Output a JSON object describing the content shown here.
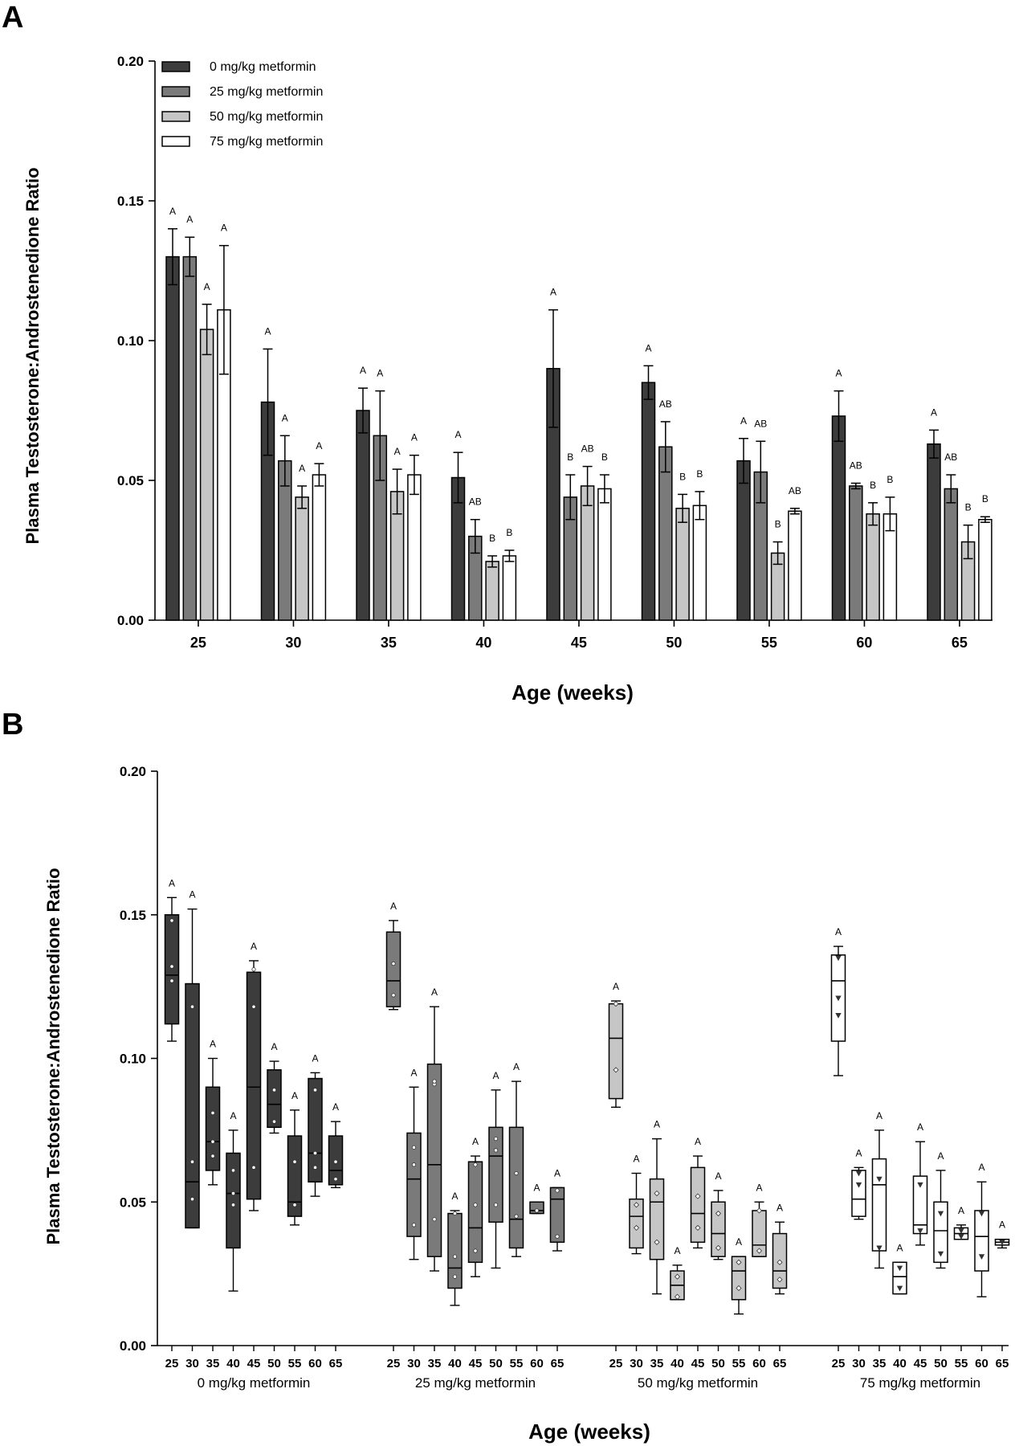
{
  "figure": {
    "panel_labels": [
      "A",
      "B"
    ],
    "colors": {
      "0 mg/kg metformin": "#3c3c3c",
      "25 mg/kg metformin": "#7a7a7a",
      "50 mg/kg metformin": "#c6c6c6",
      "75 mg/kg metformin": "#ffffff"
    }
  },
  "chart_data": [
    {
      "panel": "A",
      "type": "bar",
      "title": "",
      "xlabel": "Age (weeks)",
      "ylabel": "Plasma Testosterone:Androstenedione Ratio",
      "ylim": [
        0,
        0.2
      ],
      "yticks": [
        "0.00",
        "0.05",
        "0.10",
        "0.15",
        "0.20"
      ],
      "yticks_values": [
        0,
        0.05,
        0.1,
        0.15,
        0.2
      ],
      "legend_position": "top-left",
      "categories": [
        "25",
        "30",
        "35",
        "40",
        "45",
        "50",
        "55",
        "60",
        "65"
      ],
      "series": [
        {
          "name": "0 mg/kg metformin",
          "values": [
            0.13,
            0.078,
            0.075,
            0.051,
            0.09,
            0.085,
            0.057,
            0.073,
            0.063
          ],
          "errors": [
            0.01,
            0.019,
            0.008,
            0.009,
            0.021,
            0.006,
            0.008,
            0.009,
            0.005
          ],
          "letters": [
            "A",
            "A",
            "A",
            "A",
            "A",
            "A",
            "A",
            "A",
            "A"
          ]
        },
        {
          "name": "25 mg/kg metformin",
          "values": [
            0.13,
            0.057,
            0.066,
            0.03,
            0.044,
            0.062,
            0.053,
            0.048,
            0.047
          ],
          "errors": [
            0.007,
            0.009,
            0.016,
            0.006,
            0.008,
            0.009,
            0.011,
            0.001,
            0.005
          ],
          "letters": [
            "A",
            "A",
            "A",
            "AB",
            "B",
            "AB",
            "AB",
            "AB",
            "AB"
          ]
        },
        {
          "name": "50 mg/kg metformin",
          "values": [
            0.104,
            0.044,
            0.046,
            0.021,
            0.048,
            0.04,
            0.024,
            0.038,
            0.028
          ],
          "errors": [
            0.009,
            0.004,
            0.008,
            0.002,
            0.007,
            0.005,
            0.004,
            0.004,
            0.006
          ],
          "letters": [
            "A",
            "A",
            "A",
            "B",
            "AB",
            "B",
            "B",
            "B",
            "B"
          ]
        },
        {
          "name": "75 mg/kg metformin",
          "values": [
            0.111,
            0.052,
            0.052,
            0.023,
            0.047,
            0.041,
            0.039,
            0.038,
            0.036
          ],
          "errors": [
            0.023,
            0.004,
            0.007,
            0.002,
            0.005,
            0.005,
            0.001,
            0.006,
            0.001
          ],
          "letters": [
            "A",
            "A",
            "A",
            "B",
            "B",
            "B",
            "AB",
            "B",
            "B"
          ]
        }
      ]
    },
    {
      "panel": "B",
      "type": "box",
      "title": "",
      "xlabel": "Age (weeks)",
      "ylabel": "Plasma Testosterone:Androstenedione Ratio",
      "ylim": [
        0,
        0.2
      ],
      "yticks": [
        "0.00",
        "0.05",
        "0.10",
        "0.15",
        "0.20"
      ],
      "yticks_values": [
        0,
        0.05,
        0.1,
        0.15,
        0.2
      ],
      "ages": [
        "25",
        "30",
        "35",
        "40",
        "45",
        "50",
        "55",
        "60",
        "65"
      ],
      "groups": [
        {
          "name": "0 mg/kg metformin",
          "marker": "circle",
          "boxes": [
            {
              "min": 0.106,
              "q1": 0.112,
              "median": 0.129,
              "q3": 0.15,
              "max": 0.156,
              "points": [
                0.127,
                0.132,
                0.148
              ],
              "letter": "A"
            },
            {
              "min": 0.041,
              "q1": 0.041,
              "median": 0.057,
              "q3": 0.126,
              "max": 0.152,
              "points": [
                0.051,
                0.064,
                0.118
              ],
              "letter": "A"
            },
            {
              "min": 0.056,
              "q1": 0.061,
              "median": 0.071,
              "q3": 0.09,
              "max": 0.1,
              "points": [
                0.066,
                0.071,
                0.081
              ],
              "letter": "A"
            },
            {
              "min": 0.019,
              "q1": 0.034,
              "median": 0.053,
              "q3": 0.067,
              "max": 0.075,
              "points": [
                0.049,
                0.053,
                0.061
              ],
              "letter": "A"
            },
            {
              "min": 0.047,
              "q1": 0.051,
              "median": 0.09,
              "q3": 0.13,
              "max": 0.134,
              "points": [
                0.062,
                0.118,
                0.131
              ],
              "letter": "A"
            },
            {
              "min": 0.074,
              "q1": 0.076,
              "median": 0.084,
              "q3": 0.096,
              "max": 0.099,
              "points": [
                0.078,
                0.089
              ],
              "letter": "A"
            },
            {
              "min": 0.042,
              "q1": 0.045,
              "median": 0.05,
              "q3": 0.073,
              "max": 0.082,
              "points": [
                0.049,
                0.064
              ],
              "letter": "A"
            },
            {
              "min": 0.052,
              "q1": 0.057,
              "median": 0.067,
              "q3": 0.093,
              "max": 0.095,
              "points": [
                0.062,
                0.067,
                0.089
              ],
              "letter": "A"
            },
            {
              "min": 0.055,
              "q1": 0.056,
              "median": 0.061,
              "q3": 0.073,
              "max": 0.078,
              "points": [
                0.058,
                0.064
              ],
              "letter": "A"
            }
          ]
        },
        {
          "name": "25 mg/kg metformin",
          "marker": "circle",
          "boxes": [
            {
              "min": 0.117,
              "q1": 0.118,
              "median": 0.127,
              "q3": 0.144,
              "max": 0.148,
              "points": [
                0.122,
                0.133
              ],
              "letter": "A"
            },
            {
              "min": 0.03,
              "q1": 0.038,
              "median": 0.058,
              "q3": 0.074,
              "max": 0.09,
              "points": [
                0.042,
                0.063,
                0.069
              ],
              "letter": "A"
            },
            {
              "min": 0.026,
              "q1": 0.031,
              "median": 0.063,
              "q3": 0.098,
              "max": 0.118,
              "points": [
                0.044,
                0.091,
                0.092
              ],
              "letter": "A"
            },
            {
              "min": 0.014,
              "q1": 0.02,
              "median": 0.027,
              "q3": 0.046,
              "max": 0.047,
              "points": [
                0.024,
                0.031,
                0.046
              ],
              "letter": "A"
            },
            {
              "min": 0.024,
              "q1": 0.029,
              "median": 0.041,
              "q3": 0.064,
              "max": 0.066,
              "points": [
                0.033,
                0.049,
                0.063
              ],
              "letter": "A"
            },
            {
              "min": 0.027,
              "q1": 0.043,
              "median": 0.066,
              "q3": 0.076,
              "max": 0.089,
              "points": [
                0.049,
                0.068,
                0.072
              ],
              "letter": "A"
            },
            {
              "min": 0.031,
              "q1": 0.034,
              "median": 0.044,
              "q3": 0.076,
              "max": 0.092,
              "points": [
                0.045,
                0.06
              ],
              "letter": "A"
            },
            {
              "min": 0.046,
              "q1": 0.046,
              "median": 0.047,
              "q3": 0.05,
              "max": 0.05,
              "points": [
                0.047
              ],
              "letter": "A"
            },
            {
              "min": 0.033,
              "q1": 0.036,
              "median": 0.051,
              "q3": 0.055,
              "max": 0.055,
              "points": [
                0.038,
                0.054
              ],
              "letter": "A"
            }
          ]
        },
        {
          "name": "50 mg/kg metformin",
          "marker": "diamond",
          "boxes": [
            {
              "min": 0.083,
              "q1": 0.086,
              "median": 0.107,
              "q3": 0.119,
              "max": 0.12,
              "points": [
                0.096,
                0.119
              ],
              "letter": "A"
            },
            {
              "min": 0.032,
              "q1": 0.034,
              "median": 0.045,
              "q3": 0.051,
              "max": 0.06,
              "points": [
                0.041,
                0.049
              ],
              "letter": "A"
            },
            {
              "min": 0.018,
              "q1": 0.03,
              "median": 0.05,
              "q3": 0.058,
              "max": 0.072,
              "points": [
                0.036,
                0.053
              ],
              "letter": "A"
            },
            {
              "min": 0.016,
              "q1": 0.016,
              "median": 0.021,
              "q3": 0.026,
              "max": 0.028,
              "points": [
                0.017,
                0.024
              ],
              "letter": "A"
            },
            {
              "min": 0.034,
              "q1": 0.036,
              "median": 0.046,
              "q3": 0.062,
              "max": 0.066,
              "points": [
                0.041,
                0.052
              ],
              "letter": "A"
            },
            {
              "min": 0.03,
              "q1": 0.031,
              "median": 0.039,
              "q3": 0.05,
              "max": 0.054,
              "points": [
                0.034,
                0.046
              ],
              "letter": "A"
            },
            {
              "min": 0.011,
              "q1": 0.016,
              "median": 0.026,
              "q3": 0.031,
              "max": 0.031,
              "points": [
                0.02,
                0.029
              ],
              "letter": "A"
            },
            {
              "min": 0.031,
              "q1": 0.031,
              "median": 0.035,
              "q3": 0.047,
              "max": 0.05,
              "points": [
                0.033,
                0.047
              ],
              "letter": "A"
            },
            {
              "min": 0.018,
              "q1": 0.02,
              "median": 0.026,
              "q3": 0.039,
              "max": 0.043,
              "points": [
                0.023,
                0.029
              ],
              "letter": "A"
            }
          ]
        },
        {
          "name": "75 mg/kg metformin",
          "marker": "triangle",
          "boxes": [
            {
              "min": 0.094,
              "q1": 0.106,
              "median": 0.127,
              "q3": 0.136,
              "max": 0.139,
              "points": [
                0.115,
                0.121,
                0.135
              ],
              "letter": "A"
            },
            {
              "min": 0.044,
              "q1": 0.045,
              "median": 0.051,
              "q3": 0.061,
              "max": 0.062,
              "points": [
                0.056,
                0.06
              ],
              "letter": "A"
            },
            {
              "min": 0.027,
              "q1": 0.033,
              "median": 0.056,
              "q3": 0.065,
              "max": 0.075,
              "points": [
                0.034,
                0.058
              ],
              "letter": "A"
            },
            {
              "min": 0.018,
              "q1": 0.018,
              "median": 0.024,
              "q3": 0.029,
              "max": 0.029,
              "points": [
                0.02,
                0.027
              ],
              "letter": "A"
            },
            {
              "min": 0.035,
              "q1": 0.039,
              "median": 0.042,
              "q3": 0.059,
              "max": 0.071,
              "points": [
                0.04,
                0.056
              ],
              "letter": "A"
            },
            {
              "min": 0.027,
              "q1": 0.029,
              "median": 0.04,
              "q3": 0.05,
              "max": 0.061,
              "points": [
                0.032,
                0.046
              ],
              "letter": "A"
            },
            {
              "min": 0.037,
              "q1": 0.037,
              "median": 0.039,
              "q3": 0.041,
              "max": 0.042,
              "points": [
                0.038,
                0.04
              ],
              "letter": "A"
            },
            {
              "min": 0.017,
              "q1": 0.026,
              "median": 0.038,
              "q3": 0.047,
              "max": 0.057,
              "points": [
                0.031,
                0.046
              ],
              "letter": "A"
            },
            {
              "min": 0.034,
              "q1": 0.035,
              "median": 0.036,
              "q3": 0.037,
              "max": 0.037,
              "points": [
                0.036
              ],
              "letter": "A"
            }
          ]
        }
      ]
    }
  ]
}
